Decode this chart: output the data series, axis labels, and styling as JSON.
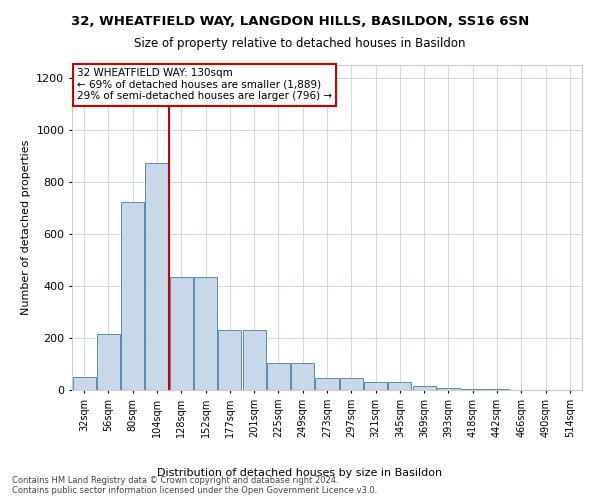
{
  "title": "32, WHEATFIELD WAY, LANGDON HILLS, BASILDON, SS16 6SN",
  "subtitle": "Size of property relative to detached houses in Basildon",
  "xlabel": "Distribution of detached houses by size in Basildon",
  "ylabel": "Number of detached properties",
  "footer_line1": "Contains HM Land Registry data © Crown copyright and database right 2024.",
  "footer_line2": "Contains public sector information licensed under the Open Government Licence v3.0.",
  "bar_labels": [
    "32sqm",
    "56sqm",
    "80sqm",
    "104sqm",
    "128sqm",
    "152sqm",
    "177sqm",
    "201sqm",
    "225sqm",
    "249sqm",
    "273sqm",
    "297sqm",
    "321sqm",
    "345sqm",
    "369sqm",
    "393sqm",
    "418sqm",
    "442sqm",
    "466sqm",
    "490sqm",
    "514sqm"
  ],
  "bar_values": [
    50,
    215,
    725,
    875,
    435,
    435,
    230,
    230,
    105,
    105,
    45,
    45,
    30,
    30,
    15,
    8,
    3,
    2,
    1,
    1,
    0
  ],
  "bar_color": "#c8d8e8",
  "bar_edge_color": "#5a8ab0",
  "vline_color": "#cc0000",
  "vline_pos": 3.5,
  "ylim": [
    0,
    1250
  ],
  "yticks": [
    0,
    200,
    400,
    600,
    800,
    1000,
    1200
  ],
  "annotation_text": "32 WHEATFIELD WAY: 130sqm\n← 69% of detached houses are smaller (1,889)\n29% of semi-detached houses are larger (796) →",
  "annotation_box_color": "#ffffff",
  "annotation_box_edge": "#cc0000",
  "background_color": "#ffffff",
  "grid_color": "#d0d8e8"
}
